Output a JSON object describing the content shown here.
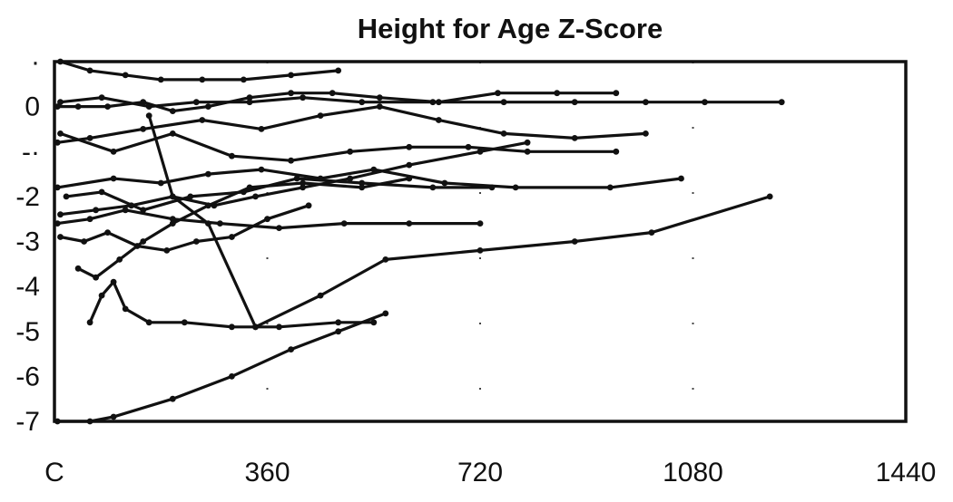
{
  "chart_data": {
    "type": "line",
    "title": "Height for Age Z-Score",
    "xlabel": "",
    "ylabel": "",
    "xlim": [
      0,
      1440
    ],
    "ylim": [
      -7,
      1
    ],
    "x_ticks": [
      0,
      360,
      720,
      1080,
      1440
    ],
    "x_tick_labels": [
      "C",
      "360",
      "720",
      "1080",
      "1440"
    ],
    "y_ticks": [
      1,
      0,
      -1,
      -2,
      -3,
      -4,
      -5,
      -6,
      -7
    ],
    "y_tick_labels": [
      "·",
      "0",
      "-·",
      "-2",
      "-3",
      "-4",
      "-5",
      "-6",
      "-7"
    ],
    "grid": "dotted at x ticks",
    "legend": "none",
    "series": [
      {
        "x": [
          10,
          60,
          120,
          180,
          250,
          320,
          400,
          480
        ],
        "y": [
          1.0,
          0.8,
          0.7,
          0.6,
          0.6,
          0.6,
          0.7,
          0.8
        ],
        "color": "#111111"
      },
      {
        "x": [
          5,
          40,
          90,
          150,
          200,
          260,
          330,
          400,
          470,
          550,
          650,
          750,
          850,
          950
        ],
        "y": [
          0.0,
          0.0,
          0.0,
          0.1,
          -0.1,
          0.0,
          0.2,
          0.3,
          0.3,
          0.2,
          0.1,
          0.3,
          0.3,
          0.3
        ],
        "color": "#111111"
      },
      {
        "x": [
          10,
          80,
          160,
          240,
          330,
          420,
          520,
          640,
          760,
          880,
          1000,
          1100,
          1230
        ],
        "y": [
          0.1,
          0.2,
          0.0,
          0.1,
          0.1,
          0.2,
          0.1,
          0.1,
          0.1,
          0.1,
          0.1,
          0.1,
          0.1
        ],
        "color": "#111111"
      },
      {
        "x": [
          5,
          60,
          150,
          250,
          350,
          450,
          550,
          650,
          760,
          880,
          1000
        ],
        "y": [
          -0.8,
          -0.7,
          -0.5,
          -0.3,
          -0.5,
          -0.2,
          0.0,
          -0.3,
          -0.6,
          -0.7,
          -0.6
        ],
        "color": "#111111"
      },
      {
        "x": [
          10,
          100,
          200,
          300,
          400,
          500,
          600,
          700,
          800,
          950
        ],
        "y": [
          -0.6,
          -1.0,
          -0.6,
          -1.1,
          -1.2,
          -1.0,
          -0.9,
          -0.9,
          -1.0,
          -1.0
        ],
        "color": "#111111"
      },
      {
        "x": [
          5,
          100,
          180,
          260,
          350,
          450,
          540,
          660,
          780,
          940,
          1060
        ],
        "y": [
          -1.8,
          -1.6,
          -1.7,
          -1.5,
          -1.4,
          -1.6,
          -1.4,
          -1.7,
          -1.8,
          -1.8,
          -1.6
        ],
        "color": "#111111"
      },
      {
        "x": [
          20,
          80,
          150,
          230,
          320,
          410,
          520,
          640,
          740
        ],
        "y": [
          -2.0,
          -1.9,
          -2.3,
          -2.0,
          -1.9,
          -1.6,
          -1.7,
          -1.8,
          -1.8
        ],
        "color": "#111111"
      },
      {
        "x": [
          10,
          70,
          130,
          200,
          270,
          340,
          420,
          500,
          600,
          720,
          800
        ],
        "y": [
          -2.4,
          -2.3,
          -2.2,
          -2.0,
          -2.2,
          -2.0,
          -1.8,
          -1.6,
          -1.3,
          -1.0,
          -0.8
        ],
        "color": "#111111"
      },
      {
        "x": [
          5,
          60,
          120,
          200,
          280,
          380,
          490,
          600,
          720
        ],
        "y": [
          -2.6,
          -2.5,
          -2.3,
          -2.5,
          -2.6,
          -2.7,
          -2.6,
          -2.6,
          -2.6
        ],
        "color": "#111111"
      },
      {
        "x": [
          10,
          50,
          90,
          140,
          190,
          240,
          300,
          360,
          430
        ],
        "y": [
          -2.9,
          -3.0,
          -2.8,
          -3.1,
          -3.2,
          -3.0,
          -2.9,
          -2.5,
          -2.2
        ],
        "color": "#111111"
      },
      {
        "x": [
          40,
          70,
          110,
          150,
          200,
          260,
          330,
          420,
          520,
          600
        ],
        "y": [
          -3.6,
          -3.8,
          -3.4,
          -3.0,
          -2.6,
          -2.2,
          -1.8,
          -1.7,
          -1.8,
          -1.6
        ],
        "color": "#111111"
      },
      {
        "x": [
          60,
          80,
          100,
          120,
          160,
          220,
          300,
          380,
          480,
          540
        ],
        "y": [
          -4.8,
          -4.2,
          -3.9,
          -4.5,
          -4.8,
          -4.8,
          -4.9,
          -4.9,
          -4.8,
          -4.8
        ],
        "color": "#111111"
      },
      {
        "x": [
          160,
          200,
          260,
          340
        ],
        "y": [
          -0.2,
          -2.0,
          -2.6,
          -4.9
        ],
        "color": "#111111"
      },
      {
        "x": [
          340,
          450,
          560,
          720,
          880,
          1010,
          1210
        ],
        "y": [
          -4.9,
          -4.2,
          -3.4,
          -3.2,
          -3.0,
          -2.8,
          -2.0
        ],
        "color": "#111111"
      },
      {
        "x": [
          5,
          60,
          100,
          200,
          300,
          400,
          480,
          560
        ],
        "y": [
          -7.0,
          -7.0,
          -6.9,
          -6.5,
          -6.0,
          -5.4,
          -5.0,
          -4.6
        ],
        "color": "#111111"
      }
    ]
  }
}
